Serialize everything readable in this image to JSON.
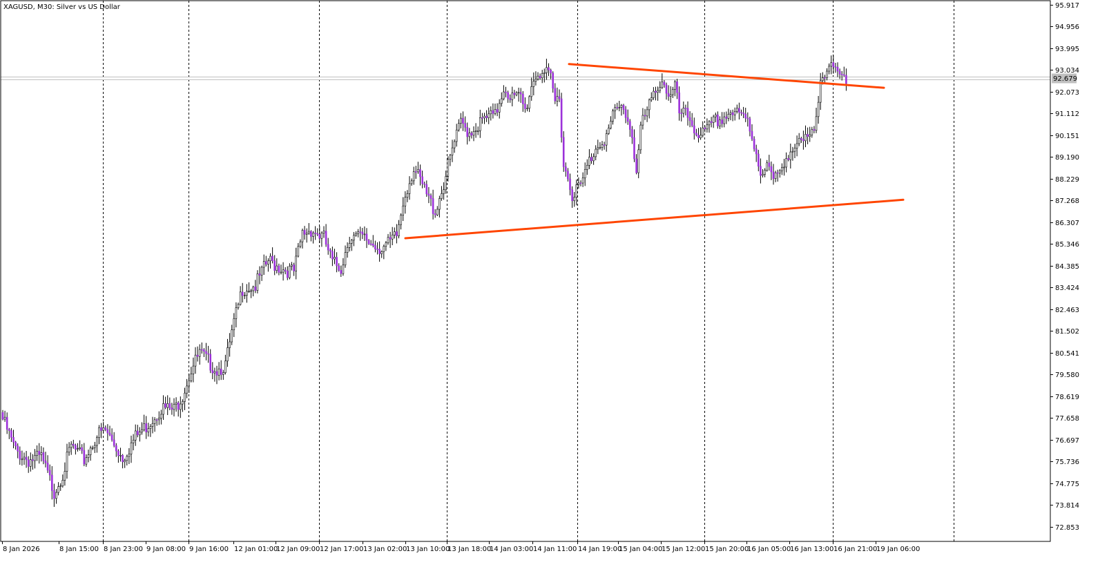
{
  "chart_data": {
    "type": "candlestick",
    "title": "XAGUSD, M30:  Silver vs US Dollar",
    "current_price_label": "92.679",
    "y_ticks": [
      "95.917",
      "94.956",
      "93.995",
      "93.034",
      "92.073",
      "91.112",
      "90.151",
      "89.190",
      "88.229",
      "87.268",
      "86.307",
      "85.346",
      "84.385",
      "83.424",
      "82.463",
      "81.502",
      "80.541",
      "79.580",
      "78.619",
      "77.658",
      "76.697",
      "75.736",
      "74.775",
      "73.814",
      "72.853"
    ],
    "ylim": [
      72.2,
      96.1
    ],
    "x_ticks": [
      "8 Jan 2026",
      "8 Jan 15:00",
      "8 Jan 23:00",
      "9 Jan 08:00",
      "9 Jan 16:00",
      "12 Jan 01:00",
      "12 Jan 09:00",
      "12 Jan 17:00",
      "13 Jan 02:00",
      "13 Jan 10:00",
      "13 Jan 18:00",
      "14 Jan 03:00",
      "14 Jan 11:00",
      "14 Jan 19:00",
      "15 Jan 04:00",
      "15 Jan 12:00",
      "15 Jan 20:00",
      "16 Jan 05:00",
      "16 Jan 13:00",
      "16 Jan 21:00",
      "19 Jan 06:00"
    ],
    "grid": "vertical-dotted",
    "session_separators": [
      "8 Jan 23:00",
      "9 Jan 16:00",
      "12 Jan 17:00",
      "13 Jan 18:00",
      "14 Jan 19:00",
      "15 Jan 20:00",
      "16 Jan 21:00"
    ],
    "colors": {
      "bull_body": "#ffffff",
      "bear_body": "#9b30d9",
      "wick": "#000000",
      "trendline": "#ff4500",
      "price_line": "#c0c0c0"
    },
    "trendlines": [
      {
        "from": [
          "14 Jan 17:30",
          93.3
        ],
        "to": [
          "19 Jan 07:00",
          92.25
        ]
      },
      {
        "from": [
          "13 Jan 10:00",
          85.6
        ],
        "to": [
          "19 Jan 08:00",
          87.3
        ]
      }
    ],
    "close_anchors": [
      [
        0,
        77.6
      ],
      [
        6,
        76.2
      ],
      [
        12,
        75.8
      ],
      [
        18,
        75.9
      ],
      [
        24,
        74.4
      ],
      [
        28,
        75.2
      ],
      [
        32,
        76.4
      ],
      [
        38,
        75.8
      ],
      [
        44,
        76.9
      ],
      [
        48,
        77.1
      ],
      [
        56,
        75.9
      ],
      [
        62,
        76.8
      ],
      [
        68,
        77.4
      ],
      [
        74,
        78.1
      ],
      [
        80,
        78.0
      ],
      [
        84,
        78.7
      ],
      [
        88,
        79.8
      ],
      [
        92,
        80.5
      ],
      [
        100,
        79.8
      ],
      [
        104,
        80.0
      ],
      [
        108,
        81.8
      ],
      [
        112,
        83.4
      ],
      [
        118,
        83.5
      ],
      [
        124,
        84.6
      ],
      [
        130,
        84.3
      ],
      [
        136,
        84.1
      ],
      [
        140,
        85.8
      ],
      [
        144,
        86.0
      ],
      [
        150,
        85.6
      ],
      [
        154,
        84.5
      ],
      [
        158,
        84.3
      ],
      [
        162,
        85.7
      ],
      [
        168,
        85.6
      ],
      [
        172,
        85.4
      ],
      [
        176,
        85.2
      ],
      [
        180,
        85.3
      ],
      [
        184,
        85.7
      ],
      [
        188,
        87.6
      ],
      [
        192,
        88.7
      ],
      [
        198,
        87.5
      ],
      [
        202,
        86.8
      ],
      [
        206,
        88.0
      ],
      [
        210,
        89.5
      ],
      [
        214,
        90.7
      ],
      [
        218,
        90.3
      ],
      [
        222,
        90.6
      ],
      [
        226,
        90.9
      ],
      [
        230,
        91.0
      ],
      [
        234,
        92.3
      ],
      [
        238,
        91.8
      ],
      [
        242,
        91.8
      ],
      [
        244,
        91.2
      ],
      [
        248,
        92.7
      ],
      [
        252,
        93.0
      ],
      [
        256,
        92.6
      ],
      [
        258,
        91.6
      ],
      [
        260,
        91.9
      ],
      [
        262,
        88.9
      ],
      [
        266,
        87.6
      ],
      [
        270,
        87.9
      ],
      [
        274,
        89.0
      ],
      [
        278,
        89.8
      ],
      [
        282,
        90.1
      ],
      [
        286,
        91.2
      ],
      [
        290,
        91.4
      ],
      [
        294,
        90.2
      ],
      [
        296,
        88.5
      ],
      [
        298,
        90.5
      ],
      [
        302,
        91.4
      ],
      [
        306,
        92.4
      ],
      [
        308,
        92.6
      ],
      [
        312,
        91.8
      ],
      [
        314,
        92.3
      ],
      [
        316,
        91.1
      ],
      [
        320,
        91.0
      ],
      [
        324,
        90.3
      ],
      [
        328,
        90.2
      ],
      [
        332,
        90.7
      ],
      [
        336,
        90.9
      ],
      [
        340,
        91.2
      ],
      [
        344,
        91.0
      ],
      [
        348,
        90.8
      ],
      [
        352,
        89.4
      ],
      [
        354,
        88.6
      ],
      [
        358,
        88.7
      ],
      [
        360,
        88.1
      ],
      [
        362,
        88.3
      ],
      [
        366,
        89.3
      ],
      [
        370,
        89.6
      ],
      [
        374,
        89.8
      ],
      [
        378,
        90.1
      ],
      [
        380,
        91.0
      ],
      [
        382,
        92.9
      ],
      [
        386,
        93.1
      ],
      [
        390,
        92.8
      ],
      [
        394,
        92.7
      ]
    ]
  }
}
